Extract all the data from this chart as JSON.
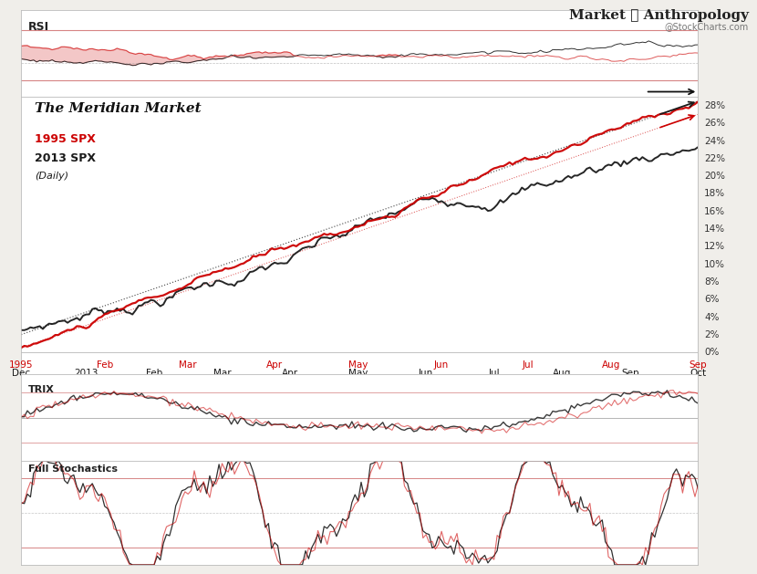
{
  "title": "The Meridian Market",
  "legend_1995": "1995 SPX",
  "legend_2013": "2013 SPX",
  "legend_daily": "(Daily)",
  "watermark": "Market ✶ Anthropology",
  "stockcharts": "@StockCharts.com",
  "x_labels_1995": [
    "1995",
    "Feb",
    "Mar",
    "Apr",
    "May",
    "Jun",
    "Jul",
    "Aug",
    "Sep"
  ],
  "x_labels_2013": [
    "Dec",
    "2013",
    "Feb",
    "Mar",
    "Apr",
    "May",
    "Jun",
    "Jul",
    "Aug",
    "Sep",
    "Oct"
  ],
  "y_labels": [
    "0%",
    "2%",
    "4%",
    "6%",
    "8%",
    "10%",
    "12%",
    "14%",
    "16%",
    "18%",
    "20%",
    "22%",
    "24%",
    "26%"
  ],
  "rsi_label": "RSI",
  "trix_label": "TRIX",
  "stoch_label": "Full Stochastics",
  "bg_color": "#f0eeea",
  "panel_bg": "#ffffff",
  "line_1995_color": "#cc0000",
  "line_2013_color": "#1a1a1a",
  "n_points": 220
}
